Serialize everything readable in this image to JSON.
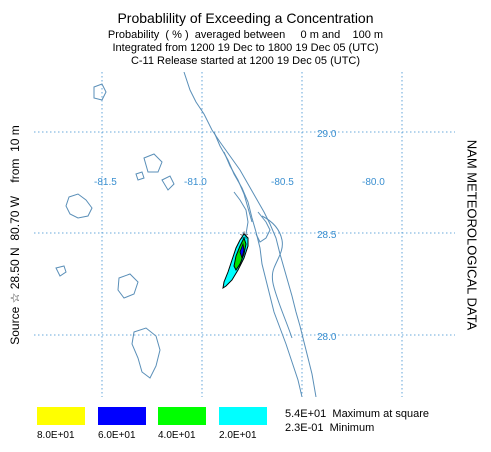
{
  "header": {
    "title": "Probablility of Exceeding a Concentration",
    "line2": "Probability  ( % )  averaged between     0 m and    100 m",
    "line3": "Integrated from 1200 19 Dec to 1800 19 Dec 05 (UTC)",
    "line4": "C-11 Release started at 1200 19 Dec 05 (UTC)"
  },
  "left_axis": {
    "source_label": "Source ☆ 28.50 N  80.70 W    from  10 m"
  },
  "right_axis": {
    "label": "NAM METEOROLOGICAL DATA"
  },
  "map": {
    "lon_labels": [
      "-81.5",
      "-81.0",
      "-80.5",
      "-80.0"
    ],
    "lat_labels": [
      "29.0",
      "28.5",
      "28.0"
    ],
    "grid_color": "#3a8fd0",
    "coast_color": "#5a8fb8",
    "plume_colors": {
      "outer": "#00ffff",
      "inner": "#00e000",
      "core": "#0000ff"
    }
  },
  "legend": {
    "items": [
      {
        "label": "8.0E+01",
        "color": "#ffff00"
      },
      {
        "label": "6.0E+01",
        "color": "#0000ff"
      },
      {
        "label": "4.0E+01",
        "color": "#00ff00"
      },
      {
        "label": "2.0E+01",
        "color": "#00ffff"
      }
    ],
    "maximum": "5.4E+01  Maximum at square",
    "minimum": "2.3E-01  Minimum"
  }
}
